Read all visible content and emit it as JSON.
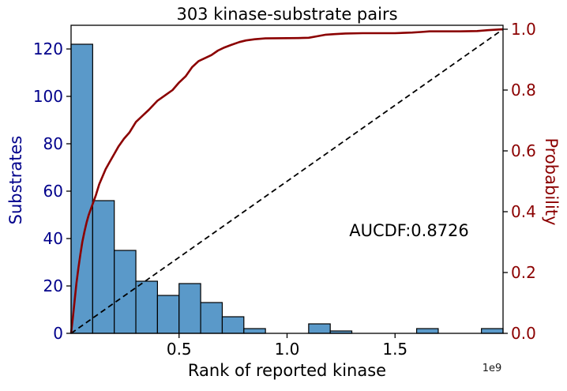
{
  "chart_data": {
    "type": "histogram_with_cdf_line",
    "title": "303 kinase-substrate pairs",
    "xlabel": "Rank of reported kinase",
    "ylabel_left": "Substrates",
    "ylabel_right": "Probability",
    "annotation": "AUCDF:0.8726",
    "x_offset_label": "1e9",
    "total_pairs": 303,
    "xlim": [
      0,
      2.0
    ],
    "ylim_left": [
      0,
      130
    ],
    "ylim_right": [
      0.0,
      1.013
    ],
    "grid": false,
    "legend": "none",
    "histogram": {
      "bin_start": 0.0,
      "bin_width": 0.1,
      "counts": [
        122,
        56,
        35,
        22,
        16,
        21,
        13,
        7,
        2,
        0,
        0,
        4,
        1,
        0,
        0,
        0,
        2,
        0,
        0,
        2
      ]
    },
    "x_ticks": [
      {
        "v": 0.5,
        "label": "0.5"
      },
      {
        "v": 1.0,
        "label": "1.0"
      },
      {
        "v": 1.5,
        "label": "1.5"
      }
    ],
    "y_ticks_left": [
      {
        "v": 0,
        "label": "0"
      },
      {
        "v": 20,
        "label": "20"
      },
      {
        "v": 40,
        "label": "40"
      },
      {
        "v": 60,
        "label": "60"
      },
      {
        "v": 80,
        "label": "80"
      },
      {
        "v": 100,
        "label": "100"
      },
      {
        "v": 120,
        "label": "120"
      }
    ],
    "y_ticks_right": [
      {
        "v": 0.0,
        "label": "0.0"
      },
      {
        "v": 0.2,
        "label": "0.2"
      },
      {
        "v": 0.4,
        "label": "0.4"
      },
      {
        "v": 0.6,
        "label": "0.6"
      },
      {
        "v": 0.8,
        "label": "0.8"
      },
      {
        "v": 1.0,
        "label": "1.0"
      }
    ],
    "cdf_points": [
      [
        0.0,
        0.0
      ],
      [
        0.008,
        0.05
      ],
      [
        0.016,
        0.105
      ],
      [
        0.025,
        0.165
      ],
      [
        0.034,
        0.215
      ],
      [
        0.043,
        0.26
      ],
      [
        0.052,
        0.3
      ],
      [
        0.062,
        0.335
      ],
      [
        0.072,
        0.365
      ],
      [
        0.082,
        0.39
      ],
      [
        0.1,
        0.425
      ],
      [
        0.115,
        0.455
      ],
      [
        0.13,
        0.49
      ],
      [
        0.145,
        0.515
      ],
      [
        0.16,
        0.54
      ],
      [
        0.18,
        0.565
      ],
      [
        0.2,
        0.59
      ],
      [
        0.22,
        0.615
      ],
      [
        0.245,
        0.64
      ],
      [
        0.27,
        0.66
      ],
      [
        0.3,
        0.695
      ],
      [
        0.33,
        0.715
      ],
      [
        0.36,
        0.735
      ],
      [
        0.4,
        0.765
      ],
      [
        0.44,
        0.785
      ],
      [
        0.47,
        0.8
      ],
      [
        0.5,
        0.825
      ],
      [
        0.53,
        0.845
      ],
      [
        0.56,
        0.875
      ],
      [
        0.59,
        0.895
      ],
      [
        0.62,
        0.905
      ],
      [
        0.65,
        0.915
      ],
      [
        0.68,
        0.93
      ],
      [
        0.71,
        0.94
      ],
      [
        0.74,
        0.948
      ],
      [
        0.78,
        0.958
      ],
      [
        0.81,
        0.963
      ],
      [
        0.85,
        0.967
      ],
      [
        0.9,
        0.97
      ],
      [
        1.05,
        0.971
      ],
      [
        1.1,
        0.972
      ],
      [
        1.14,
        0.977
      ],
      [
        1.18,
        0.982
      ],
      [
        1.22,
        0.984
      ],
      [
        1.27,
        0.986
      ],
      [
        1.35,
        0.987
      ],
      [
        1.5,
        0.987
      ],
      [
        1.58,
        0.989
      ],
      [
        1.62,
        0.991
      ],
      [
        1.66,
        0.993
      ],
      [
        1.8,
        0.993
      ],
      [
        1.88,
        0.994
      ],
      [
        1.93,
        0.997
      ],
      [
        2.0,
        1.0
      ]
    ],
    "diagonal_line": {
      "x": [
        0.0,
        2.0
      ],
      "p": [
        0.0,
        1.0
      ],
      "style": "dashed"
    },
    "colors": {
      "bar_fill": "#5A99C9",
      "bar_edge": "#000000",
      "cdf_line": "#8B0000",
      "diagonal": "#000000",
      "left_axis_text": "#00008B",
      "right_axis_text": "#8B0000",
      "x_axis_text": "#000000",
      "spine": "#000000"
    }
  }
}
